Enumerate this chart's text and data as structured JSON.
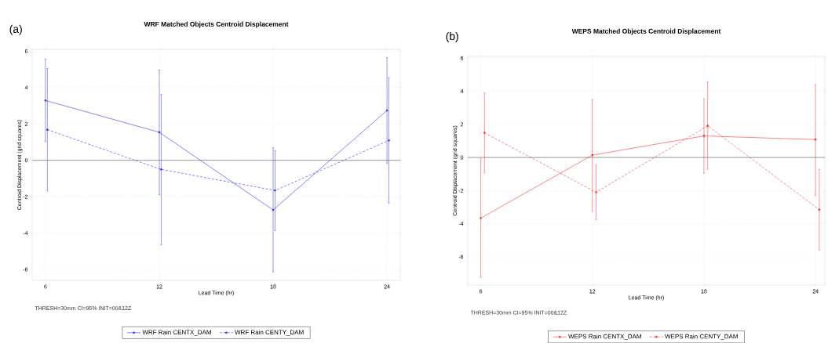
{
  "chart_data": [
    {
      "type": "line",
      "title": "WRF Matched Objects Centroid Displacement",
      "xlabel": "Lead Time (hr)",
      "ylabel": "Centroid Displacement (grid squares)",
      "annotations": [
        "(a)",
        "THRESH=30mm CI=95% INIT=00&12Z"
      ],
      "xlim": [
        5.3,
        24.7
      ],
      "ylim": [
        -6.6,
        6.1
      ],
      "xticks": [
        6,
        12,
        18,
        24
      ],
      "yticks": [
        -6,
        -4,
        -2,
        0,
        2,
        4,
        6
      ],
      "grid": true,
      "legend": "bottom",
      "marker": "circle",
      "ref_lines": [
        {
          "axis": "y",
          "value": 0,
          "color": "#555555"
        }
      ],
      "series": [
        {
          "name": "WRF Rain CENTX_DAM",
          "color": "#3333ff",
          "line_style": "solid",
          "x": [
            6,
            12,
            18,
            24
          ],
          "values": [
            3.29,
            1.54,
            -2.73,
            2.74
          ],
          "errors": [
            [
              1.03,
              5.55
            ],
            [
              -1.89,
              4.96
            ],
            [
              -6.13,
              0.69
            ],
            [
              -0.16,
              5.64
            ]
          ]
        },
        {
          "name": "WRF Rain CENTY_DAM",
          "color": "#3333ff",
          "line_style": "dashed",
          "x": [
            6.1,
            12.1,
            18.1,
            24.1
          ],
          "values": [
            1.68,
            -0.5,
            -1.66,
            1.09
          ],
          "errors": [
            [
              -1.68,
              5.04
            ],
            [
              -4.65,
              3.62
            ],
            [
              -3.86,
              0.53
            ],
            [
              -2.35,
              4.55
            ]
          ]
        }
      ]
    },
    {
      "type": "line",
      "title": "WEPS Matched Objects Centroid Displacement",
      "xlabel": "Lead Time (hr)",
      "ylabel": "Centroid Displacement (grid squares)",
      "annotations": [
        "(b)",
        "THRESH=30mm CI=95% INIT=00&12Z"
      ],
      "xlim": [
        5.3,
        24.5
      ],
      "ylim": [
        -7.7,
        6.1
      ],
      "xticks": [
        6,
        12,
        18,
        24
      ],
      "yticks": [
        -6,
        -4,
        -2,
        0,
        2,
        4,
        6
      ],
      "grid": true,
      "legend": "bottom",
      "marker": "circle",
      "ref_lines": [
        {
          "axis": "y",
          "value": 0,
          "color": "#555555"
        }
      ],
      "series": [
        {
          "name": "WEPS Rain CENTX_DAM",
          "color": "#ff3333",
          "line_style": "solid",
          "x": [
            6,
            12,
            18,
            24
          ],
          "values": [
            -3.66,
            0.14,
            1.3,
            1.08
          ],
          "errors": [
            [
              -7.23,
              -0.08
            ],
            [
              -3.24,
              3.5
            ],
            [
              -0.95,
              3.53
            ],
            [
              -2.28,
              4.4
            ]
          ]
        },
        {
          "name": "WEPS Rain CENTY_DAM",
          "color": "#ff3333",
          "line_style": "dashed",
          "x": [
            6.2,
            12.2,
            18.2,
            24.2
          ],
          "values": [
            1.49,
            -2.1,
            1.91,
            -3.15
          ],
          "errors": [
            [
              -0.92,
              3.89
            ],
            [
              -3.75,
              -0.46
            ],
            [
              -0.71,
              4.56
            ],
            [
              -5.59,
              -0.71
            ]
          ]
        }
      ]
    }
  ]
}
